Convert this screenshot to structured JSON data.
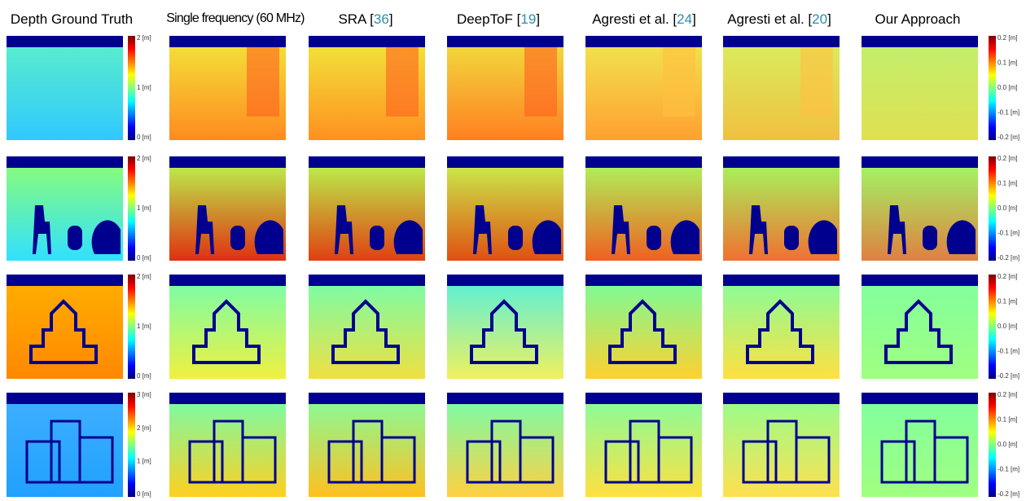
{
  "columns": [
    {
      "prefix": "Depth Ground Truth"
    },
    {
      "prefix": "Single frequency (60 MHz)"
    },
    {
      "prefix": "SRA [",
      "ref": "36",
      "suffix": "]"
    },
    {
      "prefix": "DeepToF [",
      "ref": "19",
      "suffix": "]"
    },
    {
      "prefix": "Agresti et al. [",
      "ref": "24",
      "suffix": "]"
    },
    {
      "prefix": "Agresti et al. [",
      "ref": "20",
      "suffix": "]"
    },
    {
      "prefix": "Our Approach"
    }
  ],
  "rows": [
    {
      "depth_scale": [
        "2 [m]",
        "1 [m]",
        "0 [m]"
      ]
    },
    {
      "depth_scale": [
        "2 [m]",
        "1 [m]",
        "0 [m]"
      ]
    },
    {
      "depth_scale": [
        "2 [m]",
        "1 [m]",
        "0 [m]"
      ]
    },
    {
      "depth_scale": [
        "3 [m]",
        "2 [m]",
        "1 [m]",
        "0 [m]"
      ]
    }
  ],
  "error_scale": [
    "0.2 [m]",
    "0.1 [m]",
    "0.0 [m]",
    "-0.1 [m]",
    "-0.2 [m]"
  ]
}
